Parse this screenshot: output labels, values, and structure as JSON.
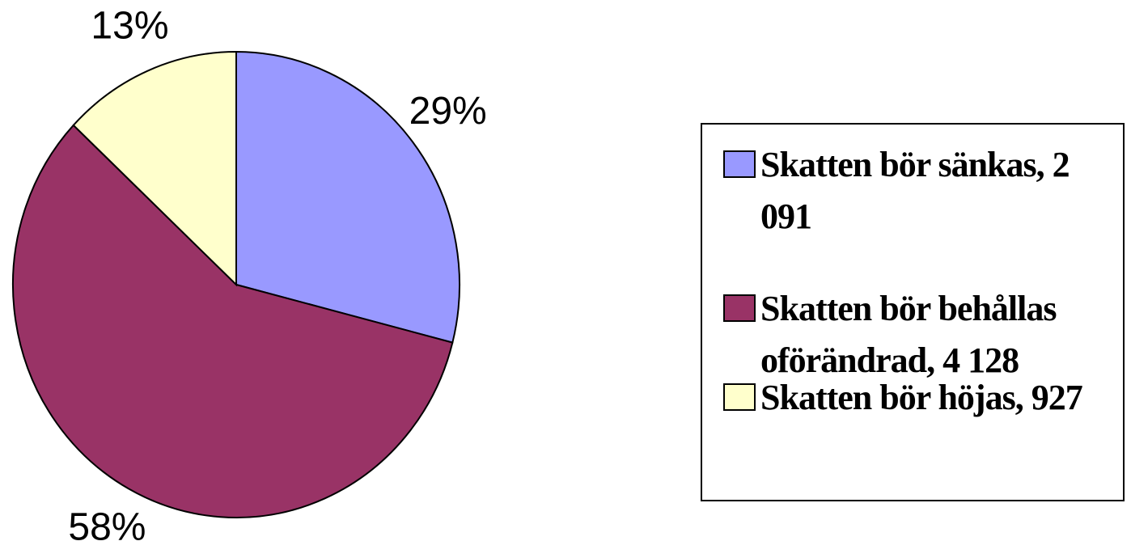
{
  "chart_data": {
    "type": "pie",
    "categories": [
      "Skatten bör sänkas, 2 091",
      "Skatten bör behållas oförändrad, 4 128",
      "Skatten bör höjas, 927"
    ],
    "values": [
      29,
      58,
      13
    ],
    "value_labels": [
      "29%",
      "58%",
      "13%"
    ],
    "colors": [
      "#9999ff",
      "#993366",
      "#ffffcc"
    ],
    "legend": "right"
  }
}
